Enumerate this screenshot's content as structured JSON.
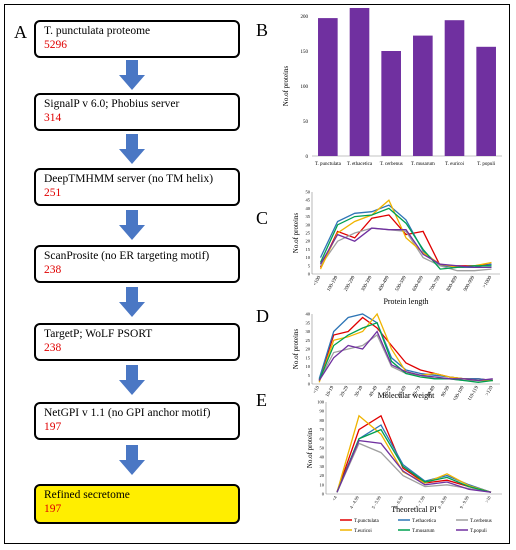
{
  "panel_labels": {
    "a": "A",
    "b": "B",
    "c": "C",
    "d": "D",
    "e": "E"
  },
  "pipeline": [
    {
      "label": "T. punctulata proteome",
      "count": "5296"
    },
    {
      "label": "SignalP v 6.0; Phobius server",
      "count": "314"
    },
    {
      "label": "DeepTMHMM server (no TM helix)",
      "count": "251"
    },
    {
      "label": "ScanProsite (no ER targeting motif)",
      "count": "238"
    },
    {
      "label": "TargetP;  WoLF PSORT",
      "count": "238"
    },
    {
      "label": "NetGPI v 1.1 (no GPI anchor motif)",
      "count": "197"
    },
    {
      "label": "Refined secretome",
      "count": "197"
    }
  ],
  "colors": {
    "arrow": "#4a77c4",
    "bar": "#7030a0",
    "highlight": "#ffee00",
    "count_text": "#e00000",
    "series": [
      "#e00000",
      "#2e75b6",
      "#a0a0a0",
      "#f0b400",
      "#00a050",
      "#7030a0"
    ]
  },
  "chart_data": [
    {
      "type": "bar",
      "categories": [
        "T. punctulata",
        "T. ethacetica",
        "T. cerbenus",
        "T. musarum",
        "T. euricoi",
        "T. populi"
      ],
      "values": [
        197,
        214,
        150,
        172,
        194,
        156
      ],
      "ylabel": "No.of proteins",
      "ylim": [
        0,
        200
      ],
      "yticks": [
        0,
        50,
        100,
        150,
        200
      ]
    },
    {
      "type": "line",
      "categories": [
        "<100",
        "100-199",
        "200-299",
        "300-399",
        "400-499",
        "500-599",
        "600-699",
        "700-799",
        "800-899",
        "900-999",
        ">1000"
      ],
      "xlabel": "Protein length",
      "ylabel": "No.of proteins",
      "ylim": [
        0,
        50
      ],
      "yticks": [
        0,
        5,
        10,
        15,
        20,
        25,
        30,
        35,
        40,
        45,
        50
      ],
      "series": [
        {
          "values": [
            4,
            26,
            22,
            34,
            36,
            24,
            26,
            5,
            5,
            5,
            6
          ]
        },
        {
          "values": [
            10,
            32,
            37,
            38,
            42,
            33,
            14,
            5,
            4,
            4,
            6
          ]
        },
        {
          "values": [
            5,
            20,
            25,
            28,
            27,
            26,
            10,
            5,
            2,
            2,
            3
          ]
        },
        {
          "values": [
            3,
            25,
            32,
            36,
            45,
            22,
            13,
            6,
            4,
            5,
            7
          ]
        },
        {
          "values": [
            7,
            30,
            35,
            36,
            40,
            31,
            15,
            3,
            4,
            5,
            5
          ]
        },
        {
          "values": [
            6,
            24,
            20,
            28,
            27,
            27,
            12,
            6,
            5,
            4,
            4
          ]
        }
      ]
    },
    {
      "type": "line",
      "categories": [
        "<10",
        "10-19",
        "20-29",
        "30-39",
        "40-49",
        "50-59",
        "60-69",
        "70-79",
        "80-89",
        "90-99",
        "100-109",
        "110-119",
        ">120"
      ],
      "xlabel": "Molecular weight",
      "ylabel": "No.of proteins",
      "ylim": [
        0,
        40
      ],
      "yticks": [
        0,
        5,
        10,
        15,
        20,
        25,
        30,
        35,
        40
      ],
      "series": [
        {
          "values": [
            2,
            28,
            30,
            38,
            32,
            22,
            12,
            8,
            6,
            4,
            3,
            3,
            2
          ]
        },
        {
          "values": [
            3,
            30,
            38,
            40,
            35,
            15,
            8,
            6,
            5,
            4,
            3,
            3,
            2
          ]
        },
        {
          "values": [
            2,
            18,
            20,
            22,
            28,
            10,
            6,
            5,
            3,
            3,
            2,
            2,
            2
          ]
        },
        {
          "values": [
            1,
            25,
            27,
            30,
            40,
            20,
            7,
            5,
            6,
            4,
            3,
            2,
            2
          ]
        },
        {
          "values": [
            2,
            22,
            28,
            32,
            35,
            13,
            6,
            4,
            3,
            3,
            2,
            1,
            2
          ]
        },
        {
          "values": [
            2,
            15,
            22,
            20,
            30,
            11,
            7,
            5,
            4,
            3,
            3,
            2,
            3
          ]
        }
      ]
    },
    {
      "type": "line",
      "categories": [
        "<4",
        "4 - 4.99",
        "5 - 5.99",
        "6 - 6.99",
        "7 - 7.99",
        "8 - 8.99",
        "9 - 9.99",
        ">10"
      ],
      "xlabel": "Theoretical PI",
      "ylabel": "No.of proteins",
      "ylim": [
        0,
        100
      ],
      "yticks": [
        0,
        10,
        20,
        30,
        40,
        50,
        60,
        70,
        80,
        90,
        100
      ],
      "series": [
        {
          "name": "T.punctulata",
          "values": [
            2,
            70,
            85,
            28,
            12,
            15,
            8,
            2
          ]
        },
        {
          "name": "T.ethacetica",
          "values": [
            2,
            60,
            75,
            32,
            14,
            20,
            10,
            2
          ]
        },
        {
          "name": "T.cerbenus",
          "values": [
            2,
            55,
            45,
            20,
            8,
            10,
            6,
            2
          ]
        },
        {
          "name": "T.euricoi",
          "values": [
            2,
            85,
            65,
            24,
            12,
            22,
            9,
            2
          ]
        },
        {
          "name": "T.musarum",
          "values": [
            2,
            60,
            70,
            30,
            13,
            18,
            8,
            2
          ]
        },
        {
          "name": "T.populi",
          "values": [
            2,
            58,
            55,
            25,
            10,
            13,
            5,
            2
          ]
        }
      ]
    }
  ]
}
